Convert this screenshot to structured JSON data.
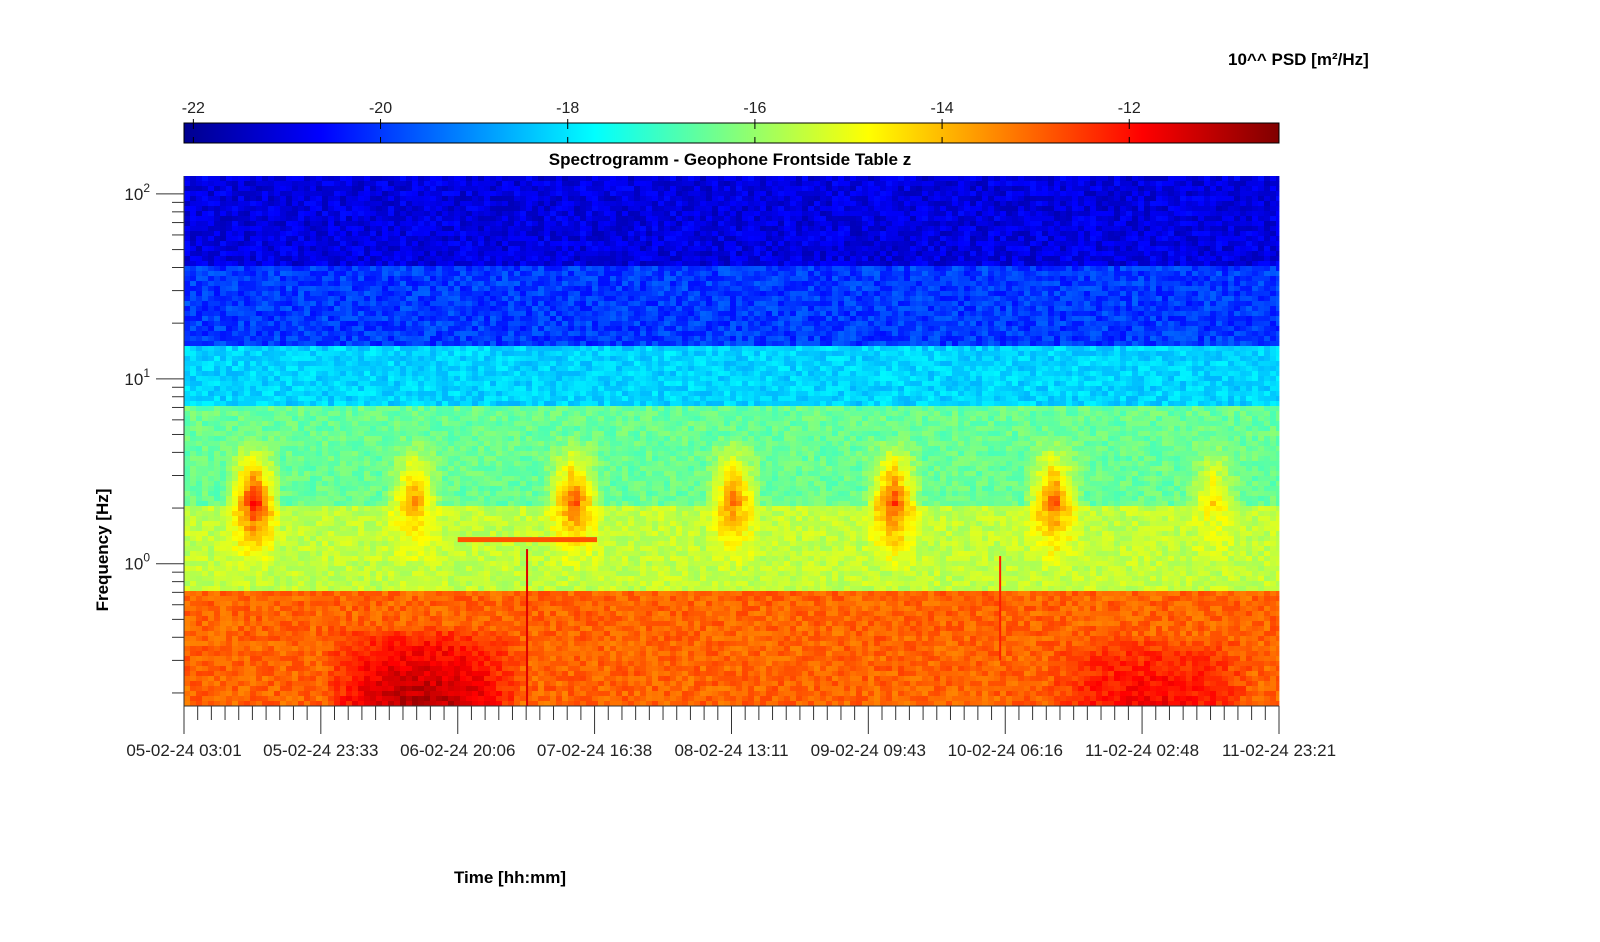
{
  "chart_data": {
    "type": "heatmap",
    "title": "Spectrogramm - Geophone Frontside Table z",
    "xlabel": "Time [hh:mm]",
    "ylabel": "Frequency [Hz]",
    "colorbar": {
      "label": "10^^ PSD [m²/Hz]",
      "range": [
        -22.1,
        -10.4
      ],
      "ticks": [
        "-22",
        "-20",
        "-18",
        "-16",
        "-14",
        "-12"
      ],
      "tick_values": [
        -22,
        -20,
        -18,
        -16,
        -14,
        -12
      ],
      "colormap": "jet",
      "placement": "top"
    },
    "x_tick_labels": [
      "05-02-24 03:01",
      "05-02-24 23:33",
      "06-02-24 20:06",
      "07-02-24 16:38",
      "08-02-24 13:11",
      "09-02-24 09:43",
      "10-02-24 06:16",
      "11-02-24 02:48",
      "11-02-24 23:21"
    ],
    "x_range": [
      "05-02-24 03:01",
      "11-02-24 23:21"
    ],
    "y_scale": "log",
    "y_range": [
      0.17,
      125
    ],
    "y_tick_labels": [
      {
        "base": "10",
        "exp": "0"
      },
      {
        "base": "10",
        "exp": "1"
      },
      {
        "base": "10",
        "exp": "2"
      }
    ],
    "y_tick_values": [
      1,
      10,
      100
    ],
    "frequency_bands": [
      {
        "f_low": 40,
        "f_high": 125,
        "psd": -21.0
      },
      {
        "f_low": 15,
        "f_high": 40,
        "psd": -20.0
      },
      {
        "f_low": 7,
        "f_high": 15,
        "psd": -18.2
      },
      {
        "f_low": 2,
        "f_high": 7,
        "psd": -16.5
      },
      {
        "f_low": 0.7,
        "f_high": 2,
        "psd": -15.5
      },
      {
        "f_low": 0.17,
        "f_high": 0.7,
        "psd": -13.0
      }
    ],
    "daytime_activity_bursts": [
      {
        "start": "05-02-24 09:00",
        "end": "05-02-24 18:00",
        "f_low": 0.9,
        "f_high": 5,
        "psd_peak": -13.5
      },
      {
        "start": "06-02-24 09:00",
        "end": "06-02-24 18:00",
        "f_low": 0.9,
        "f_high": 5,
        "psd_peak": -14.5
      },
      {
        "start": "07-02-24 09:00",
        "end": "07-02-24 18:00",
        "f_low": 0.9,
        "f_high": 5,
        "psd_peak": -14.0
      },
      {
        "start": "08-02-24 09:00",
        "end": "08-02-24 18:00",
        "f_low": 0.9,
        "f_high": 5,
        "psd_peak": -14.2
      },
      {
        "start": "09-02-24 09:00",
        "end": "09-02-24 18:00",
        "f_low": 0.9,
        "f_high": 5,
        "psd_peak": -13.8
      },
      {
        "start": "10-02-24 09:00",
        "end": "10-02-24 18:00",
        "f_low": 0.9,
        "f_high": 5,
        "psd_peak": -14.0
      },
      {
        "start": "11-02-24 09:00",
        "end": "11-02-24 18:00",
        "f_low": 0.9,
        "f_high": 5,
        "psd_peak": -15.0
      }
    ],
    "events": [
      {
        "type": "narrowband_line",
        "start": "06-02-24 20:06",
        "end": "07-02-24 17:00",
        "frequency": 1.35,
        "psd": -12.8
      },
      {
        "type": "broadband_spike",
        "time": "07-02-24 06:30",
        "f_low": 0.17,
        "f_high": 1.2,
        "psd": -11.5
      },
      {
        "type": "broadband_spike",
        "time": "10-02-24 05:30",
        "f_low": 0.3,
        "f_high": 1.1,
        "psd": -12.2
      },
      {
        "type": "low_frequency_maximum",
        "start": "05-02-24 23:33",
        "end": "07-02-24 06:00",
        "f_low": 0.17,
        "f_high": 0.45,
        "psd": -11.0
      },
      {
        "type": "low_frequency_maximum",
        "start": "10-02-24 12:00",
        "end": "11-02-24 20:00",
        "f_low": 0.17,
        "f_high": 0.4,
        "psd": -11.8
      }
    ],
    "grid": false
  }
}
